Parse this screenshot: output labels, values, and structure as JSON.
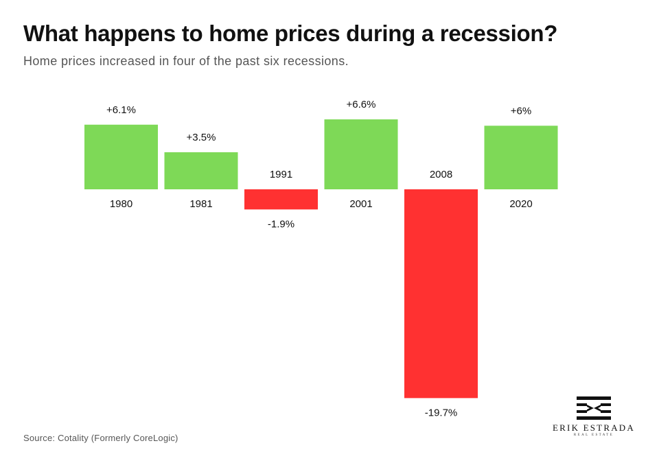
{
  "header": {
    "title": "What happens to home prices during a recession?",
    "subtitle": "Home prices increased in four of the past six recessions."
  },
  "footer": {
    "source": "Source: Cotality (Formerly CoreLogic)"
  },
  "logo": {
    "name": "ERIK ESTRADA",
    "tagline": "REAL ESTATE"
  },
  "colors": {
    "positive": "#7ED957",
    "negative": "#FF3131",
    "text": "#111111"
  },
  "chart_data": {
    "type": "bar",
    "title": "What happens to home prices during a recession?",
    "subtitle": "Home prices increased in four of the past six recessions.",
    "categories": [
      "1980",
      "1981",
      "1991",
      "2001",
      "2008",
      "2020"
    ],
    "values": [
      6.1,
      3.5,
      -1.9,
      6.6,
      -19.7,
      6
    ],
    "data_labels": [
      "+6.1%",
      "+3.5%",
      "-1.9%",
      "+6.6%",
      "-19.7%",
      "+6%"
    ],
    "xlabel": "",
    "ylabel": "",
    "ylim": [
      -19.7,
      6.6
    ],
    "grid": false,
    "legend": "none"
  }
}
